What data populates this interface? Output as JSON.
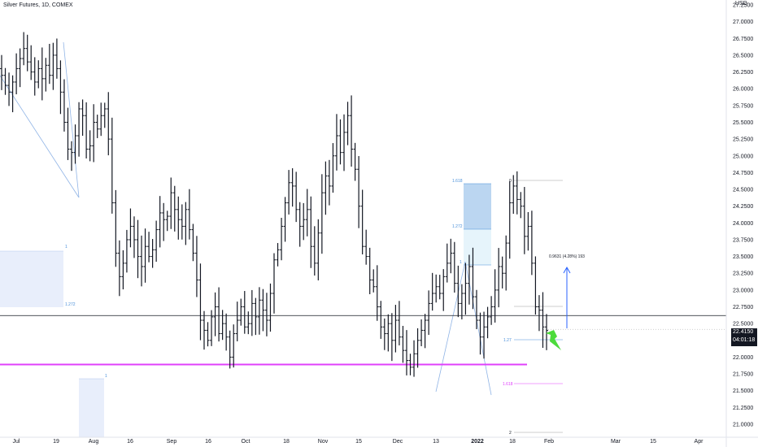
{
  "header": {
    "symbol_title": "Silver Futures, 1D, COMEX"
  },
  "axis": {
    "currency": "USD",
    "current_price": "22.4150",
    "countdown": "04:01:18"
  },
  "chart_data": {
    "type": "ohlc",
    "symbol": "Silver Futures",
    "interval": "1D",
    "exchange": "COMEX",
    "y_ticks": [
      "21.0000",
      "21.2500",
      "21.5000",
      "21.7500",
      "22.0000",
      "22.2500",
      "22.5000",
      "22.7500",
      "23.0000",
      "23.2500",
      "23.5000",
      "23.7500",
      "24.0000",
      "24.2500",
      "24.5000",
      "24.7500",
      "25.0000",
      "25.2500",
      "25.5000",
      "25.7500",
      "26.0000",
      "26.2500",
      "26.5000",
      "26.7500",
      "27.0000",
      "27.2500"
    ],
    "ylim": [
      20.9,
      27.5
    ],
    "x_ticks": [
      "Jul",
      "19",
      "Aug",
      "16",
      "Sep",
      "16",
      "Oct",
      "18",
      "Nov",
      "15",
      "Dec",
      "13",
      "2022",
      "18",
      "Feb",
      "Mar",
      "15",
      "Apr"
    ],
    "closes": [
      26.2,
      26.05,
      25.95,
      26.1,
      26.3,
      26.45,
      26.6,
      26.4,
      26.25,
      26.1,
      26.3,
      26.15,
      26.35,
      26.2,
      26.5,
      26.3,
      25.95,
      25.5,
      25.1,
      25.05,
      25.3,
      25.7,
      25.6,
      25.1,
      25.15,
      25.5,
      25.4,
      25.6,
      25.7,
      25.25,
      24.3,
      23.55,
      23.2,
      23.4,
      23.75,
      23.95,
      23.75,
      23.5,
      23.35,
      23.65,
      23.5,
      23.6,
      23.9,
      24.15,
      24.05,
      24.1,
      24.45,
      24.2,
      24.05,
      23.95,
      24.2,
      23.9,
      23.55,
      23.15,
      22.55,
      22.4,
      22.25,
      22.6,
      22.75,
      22.35,
      22.5,
      22.3,
      22.0,
      22.35,
      22.55,
      22.75,
      22.45,
      22.5,
      22.8,
      22.6,
      22.85,
      22.7,
      22.55,
      22.95,
      23.45,
      23.6,
      23.95,
      24.3,
      24.6,
      24.55,
      24.2,
      23.95,
      24.05,
      24.2,
      23.65,
      23.4,
      23.85,
      24.45,
      24.7,
      24.55,
      25.0,
      25.3,
      25.05,
      25.35,
      25.6,
      25.1,
      24.8,
      24.25,
      23.65,
      23.5,
      23.15,
      23.05,
      22.75,
      22.45,
      22.35,
      22.5,
      22.25,
      22.55,
      22.3,
      22.1,
      21.95,
      21.85,
      22.05,
      22.25,
      22.4,
      22.55,
      22.8,
      22.95,
      23.05,
      22.95,
      23.2,
      23.4,
      23.55,
      23.1,
      22.8,
      22.95,
      23.1,
      23.35,
      22.9,
      22.55,
      22.3,
      22.45,
      22.6,
      22.75,
      23.0,
      23.35,
      23.25,
      23.7,
      24.3,
      24.55,
      24.35,
      24.25,
      23.8,
      23.95,
      23.4,
      22.75,
      22.7,
      22.45,
      22.4
    ],
    "bars": {
      "first_date_label": "Jul",
      "note": "daily OHLC, closes listed above, highs/lows approximate"
    },
    "horizontal_lines": [
      {
        "price": 22.62,
        "color": "#131722"
      },
      {
        "price": 21.89,
        "color": "#e040fb"
      }
    ],
    "fib_annotations_left": [
      "1",
      "1.272",
      "1"
    ],
    "fib_annotations_right": [
      "1.618",
      "1.272",
      "1",
      "1.27",
      "1.618",
      "0",
      "2"
    ],
    "measurement_label": "0.9631 (4.28%) 193",
    "x_axis_label": ""
  },
  "colors": {
    "bar": "#131722",
    "magenta": "#e040fb",
    "fib_blue": "#2962ff",
    "fib_fill_dark": "#bbd6f1",
    "fib_fill_light": "#e6f4fb",
    "box_fill": "#e8eefb",
    "arrow_green": "#4cdb3c",
    "grid": "#ffffff"
  }
}
